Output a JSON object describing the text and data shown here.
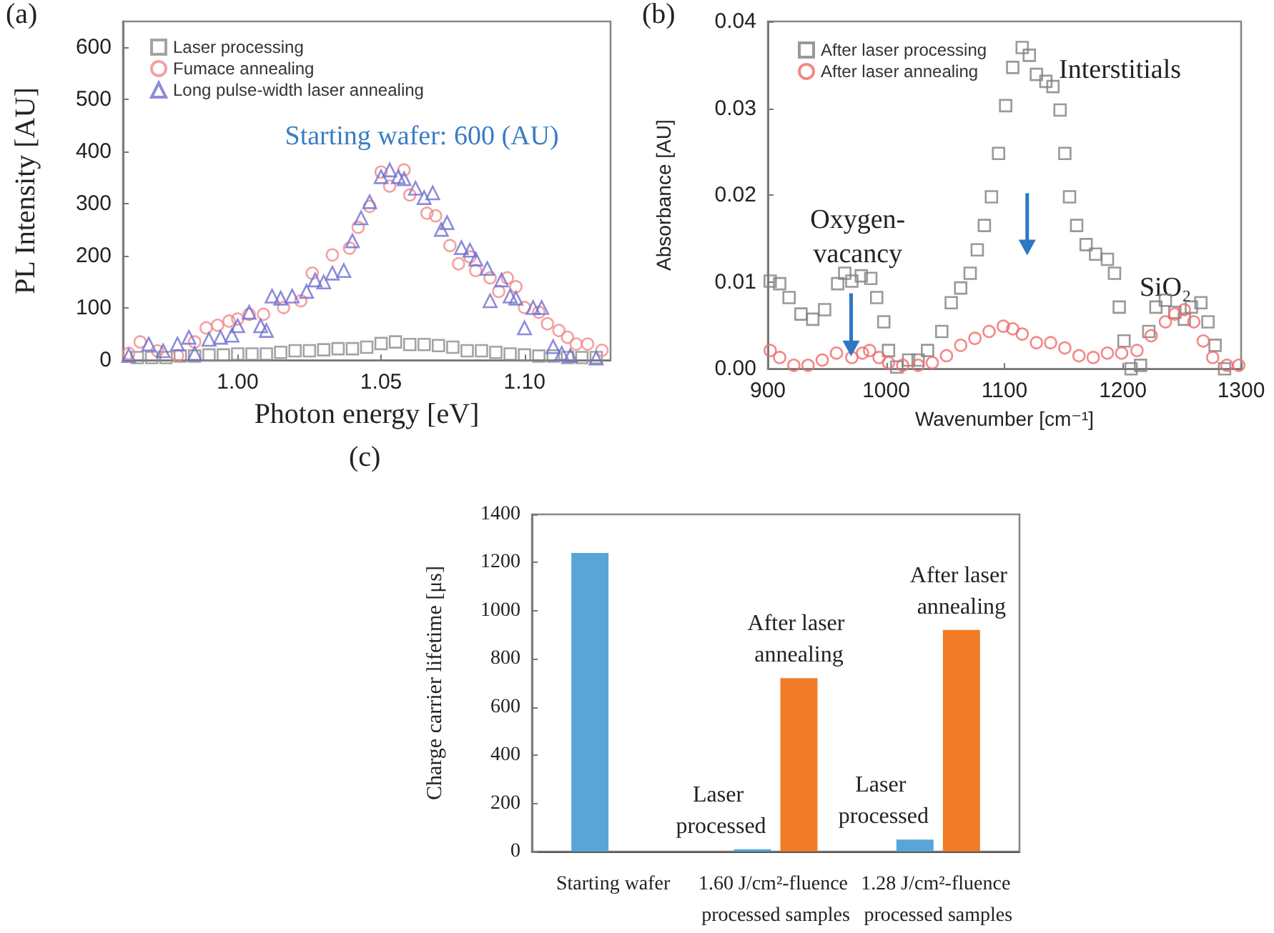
{
  "chart_data": [
    {
      "type": "scatter",
      "title": "(a)",
      "xlabel": "Photon energy [eV]",
      "ylabel": "PL Intensity [AU]",
      "xlim": [
        0.96,
        1.13
      ],
      "xticks": [
        {
          "value": 1.0,
          "label": "1.00"
        },
        {
          "value": 1.05,
          "label": "1.05"
        },
        {
          "value": 1.1,
          "label": "1.10"
        }
      ],
      "ylim": [
        0,
        650
      ],
      "yticks": [
        0,
        100,
        200,
        300,
        400,
        500,
        600
      ],
      "grid": false,
      "legend": "top left",
      "annotations": [
        "Starting wafer: 600 (AU)"
      ],
      "series": [
        {
          "name": "Laser processing",
          "color": "#8c8c8c",
          "marker": "square",
          "x": [
            0.965,
            0.97,
            0.975,
            0.98,
            0.985,
            0.99,
            0.995,
            1.0,
            1.005,
            1.01,
            1.015,
            1.02,
            1.025,
            1.03,
            1.035,
            1.04,
            1.045,
            1.05,
            1.055,
            1.06,
            1.065,
            1.07,
            1.075,
            1.08,
            1.085,
            1.09,
            1.095,
            1.1,
            1.105,
            1.11,
            1.115,
            1.12,
            1.125
          ],
          "values": [
            5,
            5,
            5,
            8,
            8,
            10,
            10,
            12,
            12,
            12,
            15,
            18,
            18,
            20,
            22,
            22,
            25,
            32,
            35,
            30,
            30,
            28,
            25,
            18,
            18,
            15,
            12,
            10,
            8,
            8,
            5,
            5,
            5
          ]
        },
        {
          "name": "Fumace annealing",
          "color": "#f08a8a",
          "marker": "circle",
          "x": [
            0.962,
            0.966,
            0.972,
            0.979,
            0.985,
            0.989,
            0.993,
            0.997,
            1.0,
            1.004,
            1.009,
            1.016,
            1.022,
            1.026,
            1.033,
            1.039,
            1.042,
            1.046,
            1.05,
            1.053,
            1.058,
            1.06,
            1.066,
            1.069,
            1.074,
            1.077,
            1.081,
            1.083,
            1.088,
            1.091,
            1.094,
            1.097,
            1.1,
            1.105,
            1.108,
            1.112,
            1.115,
            1.118,
            1.122,
            1.127
          ],
          "values": [
            13,
            35,
            18,
            9,
            35,
            62,
            67,
            75,
            79,
            88,
            88,
            101,
            114,
            167,
            202,
            215,
            255,
            295,
            361,
            334,
            365,
            317,
            282,
            277,
            220,
            185,
            198,
            172,
            158,
            132,
            158,
            141,
            101,
            92,
            70,
            57,
            44,
            31,
            31,
            19
          ]
        },
        {
          "name": "Long pulse-width laser annealing",
          "color": "#6f6fd0",
          "marker": "triangle",
          "x": [
            0.962,
            0.969,
            0.974,
            0.979,
            0.983,
            0.985,
            0.99,
            0.994,
            0.998,
            1.0,
            1.004,
            1.008,
            1.01,
            1.012,
            1.015,
            1.019,
            1.024,
            1.027,
            1.03,
            1.033,
            1.037,
            1.04,
            1.043,
            1.046,
            1.05,
            1.053,
            1.056,
            1.058,
            1.062,
            1.065,
            1.068,
            1.071,
            1.073,
            1.078,
            1.081,
            1.083,
            1.087,
            1.088,
            1.092,
            1.095,
            1.097,
            1.1,
            1.103,
            1.106,
            1.11,
            1.113,
            1.116,
            1.125
          ],
          "values": [
            9,
            31,
            18,
            31,
            44,
            13,
            40,
            44,
            48,
            66,
            92,
            66,
            57,
            123,
            119,
            123,
            132,
            154,
            150,
            167,
            172,
            229,
            273,
            304,
            352,
            365,
            352,
            348,
            330,
            312,
            321,
            251,
            264,
            216,
            211,
            194,
            176,
            114,
            154,
            123,
            119,
            62,
            101,
            101,
            26,
            13,
            9,
            4
          ]
        }
      ]
    },
    {
      "type": "scatter",
      "title": "(b)",
      "xlabel": "Wavenumber [cm⁻¹]",
      "ylabel": "Absorbance [AU]",
      "xlim": [
        900,
        1300
      ],
      "xticks": [
        900,
        1000,
        1100,
        1200,
        1300
      ],
      "ylim": [
        0,
        0.04
      ],
      "yticks": [
        {
          "value": 0,
          "label": "0.00"
        },
        {
          "value": 0.01,
          "label": "0.01"
        },
        {
          "value": 0.02,
          "label": "0.02"
        },
        {
          "value": 0.03,
          "label": "0.03"
        },
        {
          "value": 0.04,
          "label": "0.04"
        }
      ],
      "grid": false,
      "legend": "top left",
      "annotations": [
        "Oxygen-vacancy",
        "Interstitials",
        "SiO₂"
      ],
      "series": [
        {
          "name": "After laser processing",
          "color": "#7f7f7f",
          "marker": "square",
          "x": [
            902,
            910,
            918,
            928,
            938,
            948,
            959,
            965,
            971,
            979,
            987,
            992,
            998,
            1002,
            1009,
            1019,
            1027,
            1035,
            1047,
            1055,
            1063,
            1071,
            1077,
            1083,
            1089,
            1095,
            1101,
            1107,
            1115,
            1121,
            1127,
            1135,
            1141,
            1147,
            1151,
            1155,
            1161,
            1169,
            1177,
            1187,
            1193,
            1197,
            1201,
            1207,
            1215,
            1222,
            1228,
            1236,
            1244,
            1252,
            1258,
            1266,
            1272,
            1278,
            1286
          ],
          "values": [
            0.0101,
            0.0098,
            0.0082,
            0.0063,
            0.0057,
            0.0068,
            0.0098,
            0.011,
            0.0101,
            0.0107,
            0.0104,
            0.0082,
            0.0054,
            0.0021,
            0.0002,
            0.001,
            0.001,
            0.0021,
            0.0043,
            0.0076,
            0.0093,
            0.011,
            0.0137,
            0.0165,
            0.0198,
            0.0248,
            0.0303,
            0.0347,
            0.037,
            0.0361,
            0.0339,
            0.0331,
            0.0325,
            0.0298,
            0.0248,
            0.0198,
            0.0165,
            0.0143,
            0.0132,
            0.0126,
            0.011,
            0.0071,
            0.0032,
            0.0,
            0.0004,
            0.0043,
            0.0071,
            0.0079,
            0.0065,
            0.0057,
            0.0071,
            0.0076,
            0.0054,
            0.0027,
            0.0
          ]
        },
        {
          "name": "After laser annealing",
          "color": "#f06a6a",
          "marker": "circle",
          "x": [
            902,
            910,
            922,
            934,
            946,
            958,
            971,
            980,
            986,
            994,
            1002,
            1014,
            1027,
            1039,
            1051,
            1063,
            1075,
            1087,
            1099,
            1107,
            1115,
            1127,
            1139,
            1151,
            1163,
            1175,
            1187,
            1199,
            1212,
            1224,
            1236,
            1244,
            1252,
            1260,
            1268,
            1276,
            1288,
            1298
          ],
          "values": [
            0.0021,
            0.0013,
            0.0004,
            0.0004,
            0.001,
            0.0018,
            0.0013,
            0.0018,
            0.0021,
            0.0013,
            0.0007,
            0.0004,
            0.0004,
            0.0007,
            0.0015,
            0.0027,
            0.0035,
            0.0043,
            0.0049,
            0.0046,
            0.004,
            0.003,
            0.003,
            0.0024,
            0.0015,
            0.0013,
            0.0018,
            0.0018,
            0.0021,
            0.0038,
            0.0054,
            0.0063,
            0.0068,
            0.0054,
            0.0032,
            0.0013,
            0.0004,
            0.0004
          ]
        }
      ]
    },
    {
      "type": "bar",
      "title": "(c)",
      "ylabel": "Charge carrier lifetime [μs]",
      "categories": [
        "Starting wafer",
        "1.60 J/cm²-fluence processed samples",
        "1.28 J/cm²-fluence processed samples"
      ],
      "ylim": [
        0,
        1400
      ],
      "yticks": [
        0,
        200,
        400,
        600,
        800,
        1000,
        1200,
        1400
      ],
      "grid": false,
      "annotations": [
        {
          "text": "Laser processed",
          "x": "1.60 J/cm²-fluence processed samples",
          "y": 10
        },
        {
          "text": "After laser annealing",
          "x": "1.60 J/cm²-fluence processed samples",
          "y": 720
        },
        {
          "text": "Laser processed",
          "x": "1.28 J/cm²-fluence processed samples",
          "y": 50
        },
        {
          "text": "After laser annealing",
          "x": "1.28 J/cm²-fluence processed samples",
          "y": 920
        }
      ],
      "series": [
        {
          "color": "#5aa5d8",
          "values": [
            1240,
            10,
            50
          ]
        },
        {
          "color": "#f07c28",
          "values": [
            null,
            720,
            920
          ]
        }
      ]
    }
  ]
}
